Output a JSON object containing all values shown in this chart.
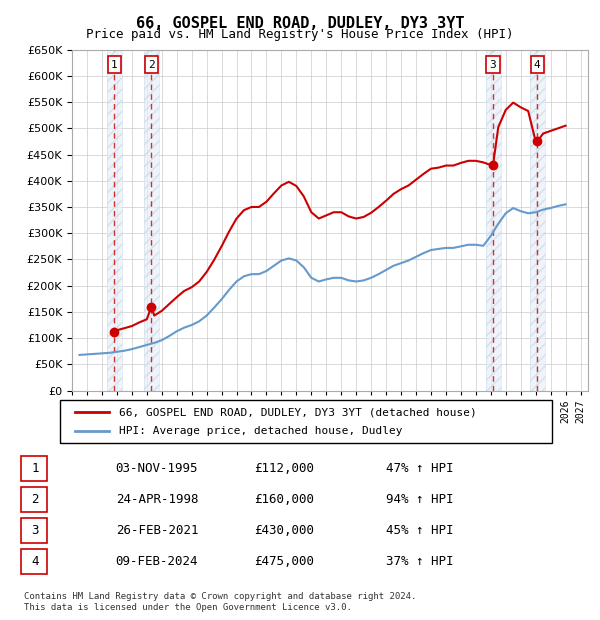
{
  "title": "66, GOSPEL END ROAD, DUDLEY, DY3 3YT",
  "subtitle": "Price paid vs. HM Land Registry's House Price Index (HPI)",
  "footer": "Contains HM Land Registry data © Crown copyright and database right 2024.\nThis data is licensed under the Open Government Licence v3.0.",
  "legend_label_red": "66, GOSPEL END ROAD, DUDLEY, DY3 3YT (detached house)",
  "legend_label_blue": "HPI: Average price, detached house, Dudley",
  "xlim": [
    1993.0,
    2027.5
  ],
  "ylim": [
    0,
    650000
  ],
  "yticks": [
    0,
    50000,
    100000,
    150000,
    200000,
    250000,
    300000,
    350000,
    400000,
    450000,
    500000,
    550000,
    600000,
    650000
  ],
  "xticks": [
    1993,
    1994,
    1995,
    1996,
    1997,
    1998,
    1999,
    2000,
    2001,
    2002,
    2003,
    2004,
    2005,
    2006,
    2007,
    2008,
    2009,
    2010,
    2011,
    2012,
    2013,
    2014,
    2015,
    2016,
    2017,
    2018,
    2019,
    2020,
    2021,
    2022,
    2023,
    2024,
    2025,
    2026,
    2027
  ],
  "sales": [
    {
      "year": 1995.836,
      "price": 112000,
      "label": "1",
      "date": "03-NOV-1995",
      "hpi_pct": "47% ↑ HPI"
    },
    {
      "year": 1998.31,
      "price": 160000,
      "label": "2",
      "date": "24-APR-1998",
      "hpi_pct": "94% ↑ HPI"
    },
    {
      "year": 2021.15,
      "price": 430000,
      "label": "3",
      "date": "26-FEB-2021",
      "hpi_pct": "45% ↑ HPI"
    },
    {
      "year": 2024.11,
      "price": 475000,
      "label": "4",
      "date": "09-FEB-2024",
      "hpi_pct": "37% ↑ HPI"
    }
  ],
  "red_line_color": "#cc0000",
  "blue_line_color": "#6699cc",
  "hatch_color": "#ddeeff",
  "grid_color": "#cccccc",
  "background_color": "#ffffff",
  "plot_bg_color": "#ffffff",
  "hpi_data": {
    "years": [
      1993.5,
      1994.0,
      1994.5,
      1995.0,
      1995.5,
      1996.0,
      1996.5,
      1997.0,
      1997.5,
      1998.0,
      1998.5,
      1999.0,
      1999.5,
      2000.0,
      2000.5,
      2001.0,
      2001.5,
      2002.0,
      2002.5,
      2003.0,
      2003.5,
      2004.0,
      2004.5,
      2005.0,
      2005.5,
      2006.0,
      2006.5,
      2007.0,
      2007.5,
      2008.0,
      2008.5,
      2009.0,
      2009.5,
      2010.0,
      2010.5,
      2011.0,
      2011.5,
      2012.0,
      2012.5,
      2013.0,
      2013.5,
      2014.0,
      2014.5,
      2015.0,
      2015.5,
      2016.0,
      2016.5,
      2017.0,
      2017.5,
      2018.0,
      2018.5,
      2019.0,
      2019.5,
      2020.0,
      2020.5,
      2021.0,
      2021.5,
      2022.0,
      2022.5,
      2023.0,
      2023.5,
      2024.0,
      2024.5,
      2025.0,
      2025.5,
      2026.0
    ],
    "values": [
      68000,
      69000,
      70000,
      71000,
      72000,
      74000,
      76000,
      79000,
      83000,
      87000,
      91000,
      96000,
      104000,
      113000,
      120000,
      125000,
      132000,
      143000,
      158000,
      174000,
      192000,
      208000,
      218000,
      222000,
      222000,
      228000,
      238000,
      248000,
      252000,
      248000,
      235000,
      215000,
      208000,
      212000,
      215000,
      215000,
      210000,
      208000,
      210000,
      215000,
      222000,
      230000,
      238000,
      243000,
      248000,
      255000,
      262000,
      268000,
      270000,
      272000,
      272000,
      275000,
      278000,
      278000,
      276000,
      295000,
      318000,
      338000,
      348000,
      342000,
      338000,
      340000,
      345000,
      348000,
      352000,
      355000
    ]
  },
  "red_line_data": {
    "years": [
      1995.836,
      1995.836,
      1996.0,
      1996.5,
      1997.0,
      1997.5,
      1998.0,
      1998.31,
      1998.5,
      1999.0,
      1999.5,
      2000.0,
      2000.5,
      2001.0,
      2001.5,
      2002.0,
      2002.5,
      2003.0,
      2003.5,
      2004.0,
      2004.5,
      2005.0,
      2005.5,
      2006.0,
      2006.5,
      2007.0,
      2007.5,
      2008.0,
      2008.5,
      2009.0,
      2009.5,
      2010.0,
      2010.5,
      2011.0,
      2011.5,
      2012.0,
      2012.5,
      2013.0,
      2013.5,
      2014.0,
      2014.5,
      2015.0,
      2015.5,
      2016.0,
      2016.5,
      2017.0,
      2017.5,
      2018.0,
      2018.5,
      2019.0,
      2019.5,
      2020.0,
      2020.5,
      2021.0,
      2021.15,
      2021.5,
      2022.0,
      2022.5,
      2023.0,
      2023.5,
      2024.0,
      2024.11,
      2024.5,
      2025.0,
      2025.5,
      2026.0
    ],
    "values": [
      112000,
      112000,
      115000,
      119000,
      123000,
      130000,
      136000,
      160000,
      143000,
      152000,
      165000,
      178000,
      190000,
      197000,
      208000,
      226000,
      249000,
      275000,
      303000,
      328000,
      344000,
      350000,
      350000,
      360000,
      376000,
      391000,
      398000,
      390000,
      370000,
      340000,
      328000,
      334000,
      340000,
      340000,
      332000,
      328000,
      331000,
      339000,
      350000,
      362000,
      375000,
      384000,
      391000,
      402000,
      413000,
      423000,
      425000,
      429000,
      429000,
      434000,
      438000,
      438000,
      435000,
      430000,
      430000,
      502000,
      535000,
      549000,
      540000,
      533000,
      475000,
      475000,
      490000,
      495000,
      500000,
      505000
    ]
  },
  "table_data": [
    [
      "1",
      "03-NOV-1995",
      "£112,000",
      "47% ↑ HPI"
    ],
    [
      "2",
      "24-APR-1998",
      "£160,000",
      "94% ↑ HPI"
    ],
    [
      "3",
      "26-FEB-2021",
      "£430,000",
      "45% ↑ HPI"
    ],
    [
      "4",
      "09-FEB-2024",
      "£475,000",
      "37% ↑ HPI"
    ]
  ]
}
